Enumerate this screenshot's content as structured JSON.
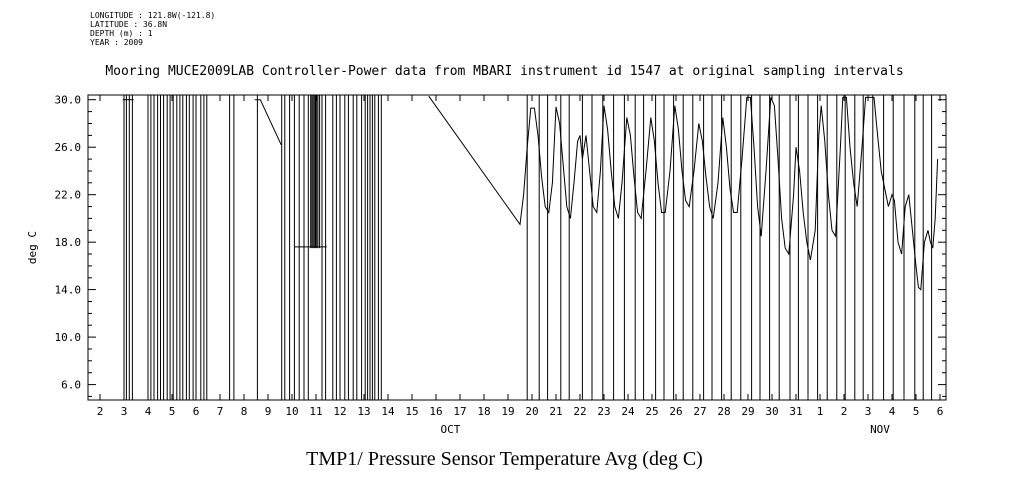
{
  "metadata": {
    "longitude": "LONGITUDE : 121.8W(-121.8)",
    "latitude": "LATITUDE : 36.8N",
    "depth": "DEPTH (m) : 1",
    "year": "YEAR : 2009"
  },
  "title": "Mooring MUCE2009LAB Controller-Power data from MBARI instrument id 1547 at original sampling intervals",
  "bottom_title": "TMP1/ Pressure Sensor Temperature Avg (deg C)",
  "chart_data": {
    "type": "line",
    "title": "Mooring MUCE2009LAB Controller-Power data from MBARI instrument id 1547 at original sampling intervals",
    "xlabel": "",
    "ylabel": "deg C",
    "line_color": "#000000",
    "grid": false,
    "xlim": [
      1.5,
      37.25
    ],
    "ylim": [
      4.7,
      30.4
    ],
    "yticks": [
      6,
      10,
      14,
      18,
      22,
      26,
      30
    ],
    "ytick_labels": [
      "6.0",
      "10.0",
      "14.0",
      "18.0",
      "22.0",
      "26.0",
      "30.0"
    ],
    "xtick_start_day": 2,
    "xtick_labels": [
      "2",
      "3",
      "4",
      "5",
      "6",
      "7",
      "8",
      "9",
      "10",
      "11",
      "12",
      "13",
      "14",
      "15",
      "16",
      "17",
      "18",
      "19",
      "20",
      "21",
      "22",
      "23",
      "24",
      "25",
      "26",
      "27",
      "28",
      "29",
      "30",
      "31",
      "1",
      "2",
      "3",
      "4",
      "5",
      "6"
    ],
    "month_labels": [
      {
        "x": 16.6,
        "label": "OCT"
      },
      {
        "x": 34.5,
        "label": "NOV"
      }
    ],
    "dropouts": [
      3.0,
      3.1,
      3.22,
      3.35,
      4.0,
      4.12,
      4.25,
      4.4,
      4.52,
      4.65,
      4.8,
      4.92,
      5.05,
      5.2,
      5.33,
      5.45,
      5.6,
      5.72,
      5.88,
      6.0,
      6.2,
      6.33,
      6.45,
      7.4,
      7.58,
      8.56,
      9.57,
      9.7,
      9.9,
      10.1,
      10.3,
      10.5,
      10.68,
      11.25,
      11.4,
      11.7,
      11.85,
      12.0,
      12.2,
      12.35,
      12.55,
      12.7,
      12.9,
      13.05,
      13.15,
      13.25,
      13.35,
      13.45,
      13.6,
      13.72,
      19.8,
      20.3,
      20.65,
      21.2,
      21.55,
      22.1,
      22.5,
      22.95,
      23.4,
      23.85,
      24.3,
      24.65,
      25.15,
      25.5,
      25.9,
      26.3,
      26.7,
      27.15,
      27.5,
      27.9,
      28.3,
      28.7,
      29.15,
      29.5,
      29.9,
      30.3,
      30.75,
      31.1,
      31.5,
      31.9,
      32.3,
      32.7,
      33.05,
      33.45,
      33.8,
      34.2,
      34.65,
      35.05,
      35.5,
      35.95,
      36.3,
      36.65
    ],
    "partial_lines": {
      "y0": 17.5,
      "y1": 30.4,
      "xs": [
        10.78,
        10.83,
        10.88,
        10.93,
        10.98,
        11.03,
        11.08,
        11.15
      ]
    },
    "trace_segments": [
      [
        [
          2.95,
          30
        ],
        [
          3.4,
          30
        ]
      ],
      [
        [
          8.45,
          30
        ],
        [
          8.68,
          30
        ],
        [
          9.55,
          26.2
        ]
      ],
      [
        [
          10.1,
          17.6
        ],
        [
          11.45,
          17.6
        ]
      ],
      [
        [
          15.7,
          30.3
        ],
        [
          19.5,
          19.5
        ],
        [
          19.65,
          22
        ],
        [
          19.8,
          26
        ],
        [
          19.95,
          29.3
        ],
        [
          20.1,
          29.3
        ],
        [
          20.25,
          27
        ],
        [
          20.4,
          23.5
        ],
        [
          20.55,
          21
        ],
        [
          20.7,
          20.5
        ],
        [
          20.85,
          23
        ],
        [
          21.0,
          29.4
        ],
        [
          21.15,
          28
        ],
        [
          21.3,
          24.5
        ],
        [
          21.45,
          21
        ],
        [
          21.6,
          20
        ],
        [
          21.75,
          23
        ],
        [
          21.9,
          26.5
        ],
        [
          22.0,
          27
        ],
        [
          22.1,
          25
        ],
        [
          22.25,
          27
        ],
        [
          22.4,
          24
        ],
        [
          22.55,
          21
        ],
        [
          22.7,
          20.5
        ],
        [
          22.85,
          24
        ],
        [
          23.0,
          29.5
        ],
        [
          23.15,
          27.5
        ],
        [
          23.3,
          24
        ],
        [
          23.45,
          21
        ],
        [
          23.6,
          20
        ],
        [
          23.75,
          23
        ],
        [
          23.95,
          28.5
        ],
        [
          24.1,
          27
        ],
        [
          24.25,
          23.5
        ],
        [
          24.4,
          20.5
        ],
        [
          24.55,
          20
        ],
        [
          24.75,
          24
        ],
        [
          24.95,
          28.5
        ],
        [
          25.1,
          26.5
        ],
        [
          25.25,
          23
        ],
        [
          25.4,
          20.5
        ],
        [
          25.55,
          20.5
        ],
        [
          25.75,
          24
        ],
        [
          25.95,
          29.5
        ],
        [
          26.1,
          27.5
        ],
        [
          26.25,
          24
        ],
        [
          26.4,
          21.5
        ],
        [
          26.55,
          21
        ],
        [
          26.75,
          24
        ],
        [
          26.95,
          28
        ],
        [
          27.1,
          26.5
        ],
        [
          27.25,
          23.5
        ],
        [
          27.4,
          21
        ],
        [
          27.55,
          20
        ],
        [
          27.75,
          23
        ],
        [
          27.95,
          28.5
        ],
        [
          28.1,
          26
        ],
        [
          28.25,
          22.5
        ],
        [
          28.4,
          20.5
        ],
        [
          28.55,
          20.5
        ],
        [
          28.75,
          25
        ],
        [
          28.95,
          30.2
        ],
        [
          29.1,
          30.2
        ],
        [
          29.25,
          26
        ],
        [
          29.4,
          21
        ],
        [
          29.55,
          18.5
        ],
        [
          29.75,
          24
        ],
        [
          29.95,
          30.2
        ],
        [
          30.1,
          29.5
        ],
        [
          30.25,
          25
        ],
        [
          30.4,
          20
        ],
        [
          30.55,
          17.5
        ],
        [
          30.7,
          17
        ],
        [
          30.9,
          22
        ],
        [
          31.0,
          26
        ],
        [
          31.15,
          24
        ],
        [
          31.3,
          20.5
        ],
        [
          31.45,
          18
        ],
        [
          31.6,
          16.5
        ],
        [
          31.8,
          19
        ],
        [
          31.95,
          27
        ],
        [
          32.05,
          29.5
        ],
        [
          32.2,
          26.5
        ],
        [
          32.35,
          22
        ],
        [
          32.5,
          19
        ],
        [
          32.65,
          18.5
        ],
        [
          32.85,
          26
        ],
        [
          32.95,
          30.2
        ],
        [
          33.1,
          30.2
        ],
        [
          33.25,
          26
        ],
        [
          33.4,
          23
        ],
        [
          33.55,
          21
        ],
        [
          33.75,
          26
        ],
        [
          33.9,
          30.2
        ],
        [
          34.1,
          30.2
        ],
        [
          34.25,
          30.2
        ],
        [
          34.4,
          27
        ],
        [
          34.55,
          24
        ],
        [
          34.7,
          22.5
        ],
        [
          34.85,
          21
        ],
        [
          35.0,
          22
        ],
        [
          35.1,
          21.5
        ],
        [
          35.25,
          18
        ],
        [
          35.4,
          17
        ],
        [
          35.55,
          21
        ],
        [
          35.7,
          22
        ],
        [
          35.85,
          19
        ],
        [
          36.0,
          16
        ],
        [
          36.1,
          14.2
        ],
        [
          36.2,
          14
        ],
        [
          36.35,
          18
        ],
        [
          36.5,
          19
        ],
        [
          36.6,
          18
        ],
        [
          36.7,
          17.5
        ],
        [
          36.8,
          20
        ],
        [
          36.9,
          25
        ]
      ]
    ]
  }
}
